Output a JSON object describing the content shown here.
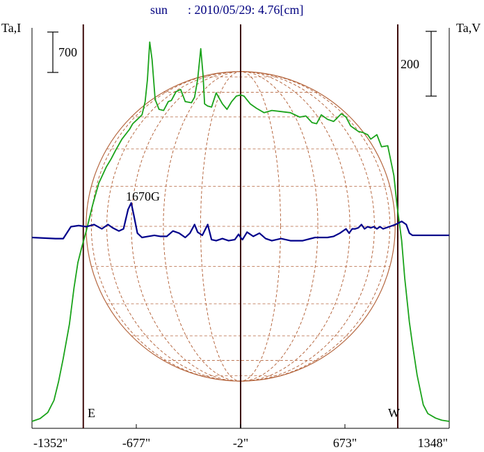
{
  "title": {
    "source": "sun",
    "info": ": 2010/05/29: 4.76[cm]",
    "color": "#000080"
  },
  "chart_data": {
    "type": "line",
    "x_ticks": [
      {
        "value": -1352,
        "label": "-1352\""
      },
      {
        "value": -677,
        "label": "-677\""
      },
      {
        "value": -2,
        "label": "-2\""
      },
      {
        "value": 673,
        "label": "673\""
      },
      {
        "value": 1348,
        "label": "1348\""
      }
    ],
    "xlim": [
      -1352,
      1348
    ],
    "axis_labels": {
      "left": "Ta,I",
      "right": "Ta,V"
    },
    "scale_bars": {
      "left": "700",
      "right": "200"
    },
    "limb_labels": {
      "east": "E",
      "west": "W"
    },
    "limb_markers": [
      -1020,
      -2,
      1015
    ],
    "disk": {
      "center": -2,
      "radius": 1000,
      "grid": true
    },
    "annotation": "1670G",
    "colors": {
      "intensity": "#1aa31a",
      "polarization": "#00008b",
      "disk": "#b4643c",
      "limb_markers": "#3c0a0a"
    },
    "series": [
      {
        "label": "I",
        "x": [
          -1352,
          -1300,
          -1250,
          -1210,
          -1180,
          -1150,
          -1110,
          -1080,
          -1055,
          -1030,
          -1000,
          -960,
          -920,
          -870,
          -840,
          -810,
          -770,
          -720,
          -700,
          -670,
          -640,
          -620,
          -605,
          -590,
          -575,
          -555,
          -530,
          -500,
          -470,
          -450,
          -420,
          -390,
          -360,
          -320,
          -300,
          -280,
          -260,
          -245,
          -235,
          -215,
          -190,
          -160,
          -120,
          -90,
          -60,
          -30,
          -2,
          20,
          60,
          100,
          150,
          200,
          260,
          320,
          380,
          420,
          460,
          490,
          520,
          560,
          600,
          650,
          680,
          710,
          760,
          790,
          820,
          840,
          880,
          910,
          950,
          990,
          1010,
          1040,
          1060,
          1090,
          1110,
          1140,
          1180,
          1210,
          1260,
          1300,
          1348
        ],
        "y": [
          0,
          25,
          80,
          190,
          360,
          570,
          880,
          1210,
          1440,
          1580,
          1730,
          1960,
          2160,
          2310,
          2380,
          2460,
          2560,
          2650,
          2700,
          2740,
          2780,
          2900,
          3100,
          3440,
          3280,
          2920,
          2830,
          2820,
          2900,
          2910,
          2990,
          3010,
          2900,
          2890,
          2940,
          3100,
          3380,
          3140,
          2880,
          2860,
          2850,
          2980,
          2880,
          2830,
          2900,
          2950,
          2960,
          2950,
          2880,
          2840,
          2800,
          2820,
          2810,
          2800,
          2760,
          2770,
          2710,
          2700,
          2780,
          2740,
          2720,
          2790,
          2760,
          2680,
          2630,
          2620,
          2600,
          2560,
          2600,
          2490,
          2500,
          2230,
          1960,
          1640,
          1300,
          900,
          700,
          420,
          150,
          70,
          30,
          10,
          0
        ]
      },
      {
        "label": "V",
        "x": [
          -1352,
          -1200,
          -1150,
          -1100,
          -1050,
          -1000,
          -950,
          -900,
          -860,
          -830,
          -790,
          -760,
          -730,
          -710,
          -695,
          -670,
          -640,
          -600,
          -560,
          -520,
          -480,
          -440,
          -400,
          -360,
          -330,
          -300,
          -280,
          -250,
          -215,
          -190,
          -160,
          -120,
          -80,
          -40,
          -15,
          -2,
          10,
          40,
          80,
          120,
          160,
          200,
          260,
          320,
          400,
          480,
          520,
          560,
          600,
          640,
          680,
          700,
          720,
          740,
          760,
          780,
          800,
          820,
          840,
          860,
          880,
          900,
          920,
          960,
          1000,
          1040,
          1070,
          1090,
          1110,
          1150,
          1200,
          1260,
          1348
        ],
        "y": [
          0,
          -5,
          -5,
          50,
          55,
          50,
          60,
          40,
          60,
          45,
          30,
          40,
          130,
          160,
          110,
          20,
          0,
          5,
          10,
          5,
          5,
          30,
          20,
          0,
          20,
          60,
          25,
          10,
          60,
          -10,
          -15,
          -5,
          -15,
          -10,
          15,
          0,
          -10,
          25,
          5,
          20,
          -5,
          -15,
          -5,
          -15,
          -15,
          0,
          0,
          0,
          5,
          20,
          40,
          20,
          40,
          40,
          45,
          60,
          40,
          50,
          45,
          50,
          40,
          50,
          40,
          50,
          60,
          75,
          60,
          20,
          10,
          10,
          10,
          10,
          10
        ]
      }
    ]
  }
}
